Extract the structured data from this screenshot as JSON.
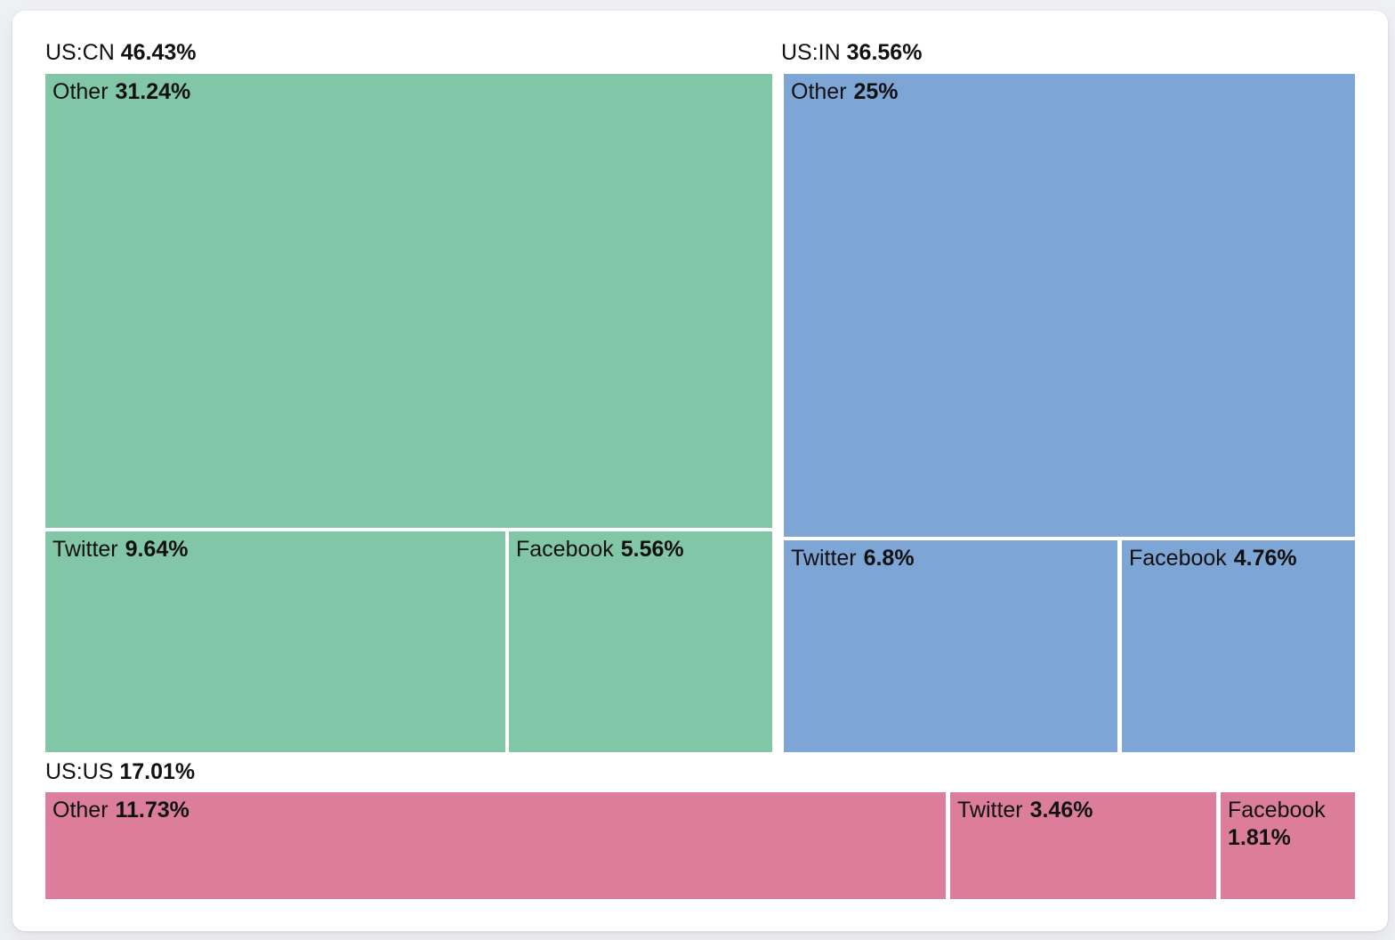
{
  "page": {
    "background_color": "#EEF0F3",
    "card_color": "#FFFFFF",
    "text_color": "#111111"
  },
  "chart_data": {
    "type": "treemap",
    "unit": "%",
    "legend_position": "none",
    "groups": [
      {
        "name": "US:CN",
        "share_label": "46.43%",
        "share": 46.43,
        "color": "#81C7A7",
        "cells": [
          {
            "label": "Other",
            "share_label": "31.24%",
            "share": 31.24
          },
          {
            "label": "Twitter",
            "share_label": "9.64%",
            "share": 9.64
          },
          {
            "label": "Facebook",
            "share_label": "5.56%",
            "share": 5.56
          }
        ]
      },
      {
        "name": "US:IN",
        "share_label": "36.56%",
        "share": 36.56,
        "color": "#7DA6D7",
        "cells": [
          {
            "label": "Other",
            "share_label": "25%",
            "share": 25.0
          },
          {
            "label": "Twitter",
            "share_label": "6.8%",
            "share": 6.8
          },
          {
            "label": "Facebook",
            "share_label": "4.76%",
            "share": 4.76
          }
        ]
      },
      {
        "name": "US:US",
        "share_label": "17.01%",
        "share": 17.01,
        "color": "#DC7E9B",
        "cells": [
          {
            "label": "Other",
            "share_label": "11.73%",
            "share": 11.73
          },
          {
            "label": "Twitter",
            "share_label": "3.46%",
            "share": 3.46
          },
          {
            "label": "Facebook",
            "share_label": "1.81%",
            "share": 1.81
          }
        ]
      }
    ]
  }
}
